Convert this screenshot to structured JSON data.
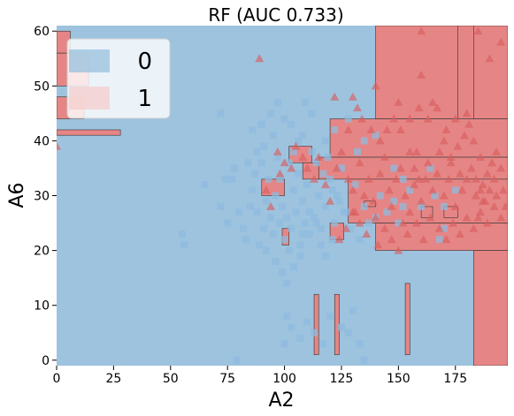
{
  "chart_data": {
    "type": "scatter",
    "title": "RF (AUC 0.733)",
    "xlabel": "A2",
    "ylabel": "A6",
    "xlim": [
      0,
      198
    ],
    "ylim": [
      -1,
      61
    ],
    "xticks": [
      "0",
      "25",
      "50",
      "75",
      "100",
      "125",
      "150",
      "175"
    ],
    "yticks": [
      "0",
      "10",
      "20",
      "30",
      "40",
      "50",
      "60"
    ],
    "grid": false,
    "legend_position": "top-left",
    "colors": {
      "class0_region": "#9dc3df",
      "class1_region": "#e68585",
      "class0_marker": "#8fbbde",
      "class1_marker": "#d9605f"
    },
    "series": [
      {
        "name": "0",
        "marker": "square",
        "points": [
          [
            20,
            54
          ],
          [
            72,
            45
          ],
          [
            55,
            23
          ],
          [
            56,
            21
          ],
          [
            65,
            32
          ],
          [
            72,
            28
          ],
          [
            74,
            33
          ],
          [
            75,
            25
          ],
          [
            77,
            33
          ],
          [
            78,
            35
          ],
          [
            80,
            27
          ],
          [
            82,
            24
          ],
          [
            83,
            22
          ],
          [
            85,
            28
          ],
          [
            86,
            31
          ],
          [
            87,
            34
          ],
          [
            88,
            27
          ],
          [
            89,
            21
          ],
          [
            90,
            36
          ],
          [
            91,
            24
          ],
          [
            92,
            29
          ],
          [
            93,
            33
          ],
          [
            94,
            26
          ],
          [
            95,
            23
          ],
          [
            96,
            30
          ],
          [
            97,
            37
          ],
          [
            98,
            25
          ],
          [
            99,
            28
          ],
          [
            100,
            22
          ],
          [
            101,
            26
          ],
          [
            102,
            20
          ],
          [
            103,
            24
          ],
          [
            104,
            31
          ],
          [
            105,
            27
          ],
          [
            106,
            34
          ],
          [
            107,
            21
          ],
          [
            108,
            29
          ],
          [
            109,
            25
          ],
          [
            110,
            32
          ],
          [
            111,
            23
          ],
          [
            112,
            38
          ],
          [
            113,
            26
          ],
          [
            115,
            30
          ],
          [
            116,
            24
          ],
          [
            118,
            28
          ],
          [
            120,
            33
          ],
          [
            122,
            25
          ],
          [
            123,
            30
          ],
          [
            125,
            35
          ],
          [
            127,
            27
          ],
          [
            129,
            24
          ],
          [
            131,
            32
          ],
          [
            133,
            22
          ],
          [
            135,
            28
          ],
          [
            137,
            25
          ],
          [
            140,
            26
          ],
          [
            142,
            30
          ],
          [
            145,
            27
          ],
          [
            148,
            29
          ],
          [
            150,
            25
          ],
          [
            152,
            28
          ],
          [
            101,
            8
          ],
          [
            103,
            6
          ],
          [
            107,
            4
          ],
          [
            110,
            7
          ],
          [
            113,
            5
          ],
          [
            117,
            3
          ],
          [
            120,
            8
          ],
          [
            125,
            6
          ],
          [
            128,
            5
          ],
          [
            130,
            9
          ],
          [
            133,
            3
          ],
          [
            135,
            0
          ],
          [
            79,
            0
          ],
          [
            100,
            3
          ],
          [
            103,
            43
          ],
          [
            108,
            41
          ],
          [
            112,
            45
          ],
          [
            118,
            40
          ],
          [
            122,
            42
          ],
          [
            128,
            44
          ],
          [
            132,
            38
          ],
          [
            135,
            40
          ],
          [
            140,
            41
          ],
          [
            91,
            39
          ],
          [
            95,
            41
          ],
          [
            98,
            33
          ],
          [
            102,
            36
          ],
          [
            104,
            38
          ],
          [
            106,
            40
          ],
          [
            114,
            36
          ],
          [
            117,
            34
          ],
          [
            119,
            37
          ],
          [
            121,
            31
          ],
          [
            124,
            29
          ],
          [
            126,
            27
          ],
          [
            108,
            23
          ],
          [
            111,
            27
          ],
          [
            114,
            25
          ],
          [
            116,
            21
          ],
          [
            118,
            19
          ],
          [
            121,
            22
          ],
          [
            92,
            20
          ],
          [
            96,
            18
          ],
          [
            99,
            16
          ],
          [
            101,
            14
          ],
          [
            104,
            17
          ],
          [
            107,
            19
          ],
          [
            88,
            38
          ],
          [
            84,
            36
          ],
          [
            86,
            42
          ],
          [
            90,
            43
          ],
          [
            94,
            45
          ],
          [
            97,
            47
          ],
          [
            100,
            44
          ],
          [
            109,
            47
          ],
          [
            164,
            35
          ],
          [
            166,
            30
          ],
          [
            170,
            28
          ],
          [
            175,
            31
          ],
          [
            148,
            35
          ],
          [
            152,
            33
          ],
          [
            155,
            31
          ],
          [
            160,
            28
          ],
          [
            168,
            22
          ],
          [
            170,
            24
          ]
        ]
      },
      {
        "name": "1",
        "marker": "triangle",
        "points": [
          [
            20,
            48
          ],
          [
            0,
            39
          ],
          [
            89,
            55
          ],
          [
            115,
            37
          ],
          [
            118,
            32
          ],
          [
            120,
            29
          ],
          [
            123,
            35
          ],
          [
            125,
            38
          ],
          [
            128,
            33
          ],
          [
            130,
            31
          ],
          [
            131,
            27
          ],
          [
            133,
            36
          ],
          [
            135,
            30
          ],
          [
            137,
            33
          ],
          [
            139,
            29
          ],
          [
            140,
            26
          ],
          [
            142,
            34
          ],
          [
            144,
            37
          ],
          [
            146,
            31
          ],
          [
            147,
            28
          ],
          [
            149,
            33
          ],
          [
            151,
            35
          ],
          [
            153,
            30
          ],
          [
            155,
            27
          ],
          [
            157,
            32
          ],
          [
            158,
            38
          ],
          [
            160,
            29
          ],
          [
            162,
            33
          ],
          [
            163,
            36
          ],
          [
            165,
            31
          ],
          [
            167,
            34
          ],
          [
            168,
            38
          ],
          [
            170,
            30
          ],
          [
            172,
            33
          ],
          [
            173,
            36
          ],
          [
            175,
            28
          ],
          [
            177,
            34
          ],
          [
            178,
            31
          ],
          [
            180,
            33
          ],
          [
            182,
            35
          ],
          [
            184,
            30
          ],
          [
            185,
            26
          ],
          [
            187,
            32
          ],
          [
            188,
            29
          ],
          [
            190,
            31
          ],
          [
            192,
            33
          ],
          [
            193,
            30
          ],
          [
            195,
            35
          ],
          [
            173,
            37
          ],
          [
            176,
            39
          ],
          [
            160,
            52
          ],
          [
            165,
            47
          ],
          [
            170,
            40
          ],
          [
            180,
            45
          ],
          [
            190,
            55
          ],
          [
            195,
            58
          ],
          [
            185,
            60
          ],
          [
            160,
            60
          ],
          [
            150,
            47
          ],
          [
            140,
            50
          ],
          [
            130,
            48
          ],
          [
            122,
            48
          ],
          [
            108,
            37
          ],
          [
            110,
            35
          ],
          [
            113,
            33
          ],
          [
            105,
            39
          ],
          [
            103,
            35
          ],
          [
            100,
            36
          ],
          [
            98,
            34
          ],
          [
            92,
            31
          ],
          [
            94,
            28
          ],
          [
            97,
            38
          ],
          [
            124,
            22
          ],
          [
            127,
            24
          ],
          [
            130,
            27
          ],
          [
            133,
            25
          ],
          [
            136,
            23
          ],
          [
            141,
            21
          ],
          [
            144,
            24
          ],
          [
            147,
            22
          ],
          [
            150,
            20
          ],
          [
            152,
            25
          ],
          [
            154,
            23
          ],
          [
            158,
            25
          ],
          [
            161,
            22
          ],
          [
            164,
            26
          ],
          [
            168,
            24
          ],
          [
            171,
            22
          ],
          [
            174,
            25
          ],
          [
            177,
            23
          ],
          [
            180,
            26
          ],
          [
            183,
            24
          ],
          [
            186,
            27
          ],
          [
            189,
            25
          ],
          [
            192,
            28
          ],
          [
            195,
            26
          ],
          [
            186,
            37
          ],
          [
            183,
            40
          ],
          [
            181,
            43
          ],
          [
            179,
            41
          ],
          [
            175,
            44
          ],
          [
            171,
            42
          ],
          [
            167,
            46
          ],
          [
            163,
            44
          ],
          [
            159,
            46
          ],
          [
            155,
            44
          ],
          [
            151,
            42
          ],
          [
            148,
            44
          ],
          [
            145,
            42
          ],
          [
            142,
            40
          ],
          [
            138,
            42
          ],
          [
            134,
            44
          ],
          [
            132,
            46
          ],
          [
            128,
            42
          ],
          [
            155,
            38
          ],
          [
            157,
            35
          ],
          [
            159,
            33
          ],
          [
            184,
            33
          ],
          [
            186,
            31
          ],
          [
            187,
            29
          ],
          [
            189,
            34
          ],
          [
            191,
            36
          ],
          [
            193,
            38
          ],
          [
            196,
            31
          ],
          [
            197,
            28
          ]
        ]
      }
    ]
  }
}
